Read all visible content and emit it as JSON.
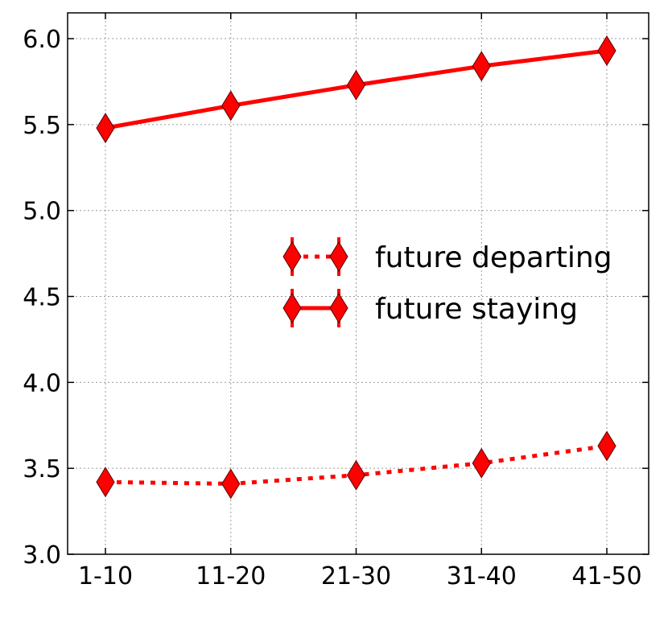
{
  "chart_data": {
    "type": "line",
    "title": "",
    "xlabel": "",
    "ylabel": "",
    "categories": [
      "1-10",
      "11-20",
      "21-30",
      "31-40",
      "41-50"
    ],
    "ylim": [
      3.0,
      6.15
    ],
    "yticks": [
      3.0,
      3.5,
      4.0,
      4.5,
      5.0,
      5.5,
      6.0
    ],
    "ytick_labels": [
      "3.0",
      "3.5",
      "4.0",
      "4.5",
      "5.0",
      "5.5",
      "6.0"
    ],
    "grid": true,
    "legend_position": "center-right",
    "series": [
      {
        "name": "future departing",
        "values": [
          3.42,
          3.41,
          3.46,
          3.53,
          3.63
        ],
        "color": "#ff0000",
        "line_style": "dotted",
        "marker": "diamond"
      },
      {
        "name": "future staying",
        "values": [
          5.48,
          5.61,
          5.73,
          5.84,
          5.93
        ],
        "color": "#ff0000",
        "line_style": "solid",
        "marker": "diamond"
      }
    ]
  }
}
